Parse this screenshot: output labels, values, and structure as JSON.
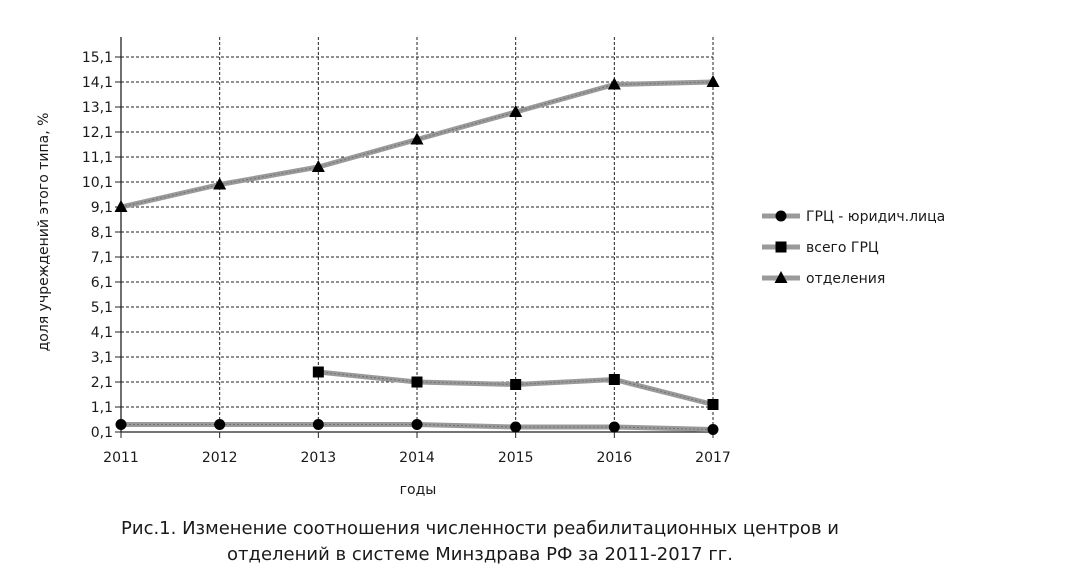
{
  "chart_data": {
    "type": "line",
    "xlabel": "годы",
    "ylabel": "доля учреждений этого типа, %",
    "x": [
      "2011",
      "2012",
      "2013",
      "2014",
      "2015",
      "2016",
      "2017"
    ],
    "y_ticks": [
      "0,1",
      "1,1",
      "2,1",
      "3,1",
      "4,1",
      "5,1",
      "6,1",
      "7,1",
      "8,1",
      "9,1",
      "10,1",
      "11,1",
      "12,1",
      "13,1",
      "14,1",
      "15,1"
    ],
    "ylim": [
      0.1,
      15.9
    ],
    "grid": true,
    "legend_position": "right",
    "series": [
      {
        "name": "ГРЦ - юридич.лица",
        "marker": "circle",
        "values": [
          0.4,
          0.4,
          0.4,
          0.4,
          0.3,
          0.3,
          0.2
        ]
      },
      {
        "name": "всего ГРЦ",
        "marker": "square",
        "values": [
          null,
          null,
          2.5,
          2.1,
          2.0,
          2.2,
          1.2
        ]
      },
      {
        "name": "отделения",
        "marker": "triangle",
        "values": [
          9.1,
          10.0,
          10.7,
          11.8,
          12.9,
          14.0,
          14.1
        ]
      }
    ]
  },
  "caption": {
    "line1": "Рис.1. Изменение соотношения численности реабилитационных центров и",
    "line2": "отделений в системе Минздрава РФ за 2011-2017 гг."
  }
}
